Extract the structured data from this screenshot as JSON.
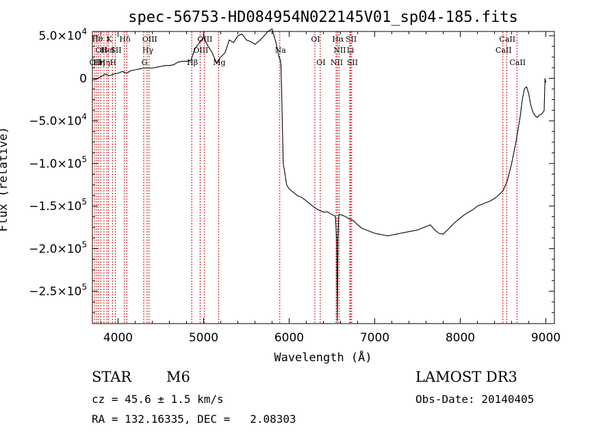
{
  "chart_data": {
    "type": "line",
    "title": "spec-56753-HD084954N022145V01_sp04-185.fits",
    "xlabel": "Wavelength (Å)",
    "ylabel": "Flux (relative)",
    "xlim": [
      3700,
      9100
    ],
    "ylim": [
      -288000,
      55000
    ],
    "x_ticks": [
      4000,
      5000,
      6000,
      7000,
      8000,
      9000
    ],
    "y_ticks": [
      {
        "value": 50000,
        "mant": "5.0",
        "exp": "4"
      },
      {
        "value": 0,
        "mant": "0",
        "exp": ""
      },
      {
        "value": -50000,
        "mant": "−5.0",
        "exp": "4"
      },
      {
        "value": -100000,
        "mant": "−1.0",
        "exp": "5"
      },
      {
        "value": -150000,
        "mant": "−1.5",
        "exp": "5"
      },
      {
        "value": -200000,
        "mant": "−2.0",
        "exp": "5"
      },
      {
        "value": -250000,
        "mant": "−2.5",
        "exp": "5"
      }
    ],
    "grid": false,
    "series": [
      {
        "color": "#000000",
        "x": [
          3700,
          3750,
          3800,
          3850,
          3900,
          3950,
          4000,
          4050,
          4100,
          4150,
          4200,
          4250,
          4300,
          4350,
          4400,
          4450,
          4500,
          4550,
          4600,
          4650,
          4700,
          4750,
          4800,
          4850,
          4900,
          4950,
          5000,
          5050,
          5100,
          5150,
          5200,
          5250,
          5300,
          5350,
          5400,
          5450,
          5500,
          5550,
          5600,
          5650,
          5700,
          5750,
          5800,
          5850,
          5880,
          5895,
          5905,
          5915,
          5930,
          5950,
          5970,
          6000,
          6050,
          6100,
          6150,
          6200,
          6250,
          6300,
          6350,
          6400,
          6450,
          6500,
          6540,
          6555,
          6562,
          6570,
          6580,
          6600,
          6650,
          6700,
          6750,
          6800,
          6850,
          6900,
          6950,
          7000,
          7050,
          7100,
          7150,
          7200,
          7250,
          7300,
          7350,
          7400,
          7450,
          7500,
          7550,
          7600,
          7650,
          7700,
          7750,
          7800,
          7850,
          7900,
          7950,
          8000,
          8050,
          8100,
          8150,
          8200,
          8250,
          8300,
          8350,
          8400,
          8450,
          8500,
          8550,
          8600,
          8650,
          8700,
          8725,
          8750,
          8775,
          8800,
          8825,
          8850,
          8875,
          8900,
          8925,
          8950,
          8980,
          8990,
          9000
        ],
        "y": [
          -2000,
          -1000,
          2000,
          5000,
          3000,
          5000,
          6000,
          8000,
          6000,
          9000,
          10000,
          11000,
          12000,
          12000,
          12000,
          13000,
          14000,
          15000,
          15000,
          16000,
          19000,
          20000,
          20000,
          21000,
          35000,
          42000,
          48000,
          38000,
          30000,
          18000,
          25000,
          30000,
          45000,
          42000,
          50000,
          52000,
          45000,
          43000,
          40000,
          44000,
          49000,
          55000,
          58000,
          40000,
          25000,
          22000,
          15000,
          -30000,
          -100000,
          -112000,
          -125000,
          -130000,
          -134000,
          -138000,
          -140000,
          -144000,
          -148000,
          -152000,
          -155000,
          -157000,
          -157000,
          -160000,
          -162000,
          -190000,
          -285000,
          -185000,
          -160000,
          -160000,
          -162000,
          -165000,
          -167000,
          -172000,
          -176000,
          -178000,
          -180000,
          -182000,
          -183000,
          -184000,
          -185000,
          -184000,
          -183000,
          -182000,
          -181000,
          -180000,
          -179000,
          -178000,
          -176000,
          -174000,
          -172000,
          -178000,
          -182000,
          -183000,
          -178000,
          -173000,
          -168000,
          -164000,
          -160000,
          -157000,
          -154000,
          -150000,
          -148000,
          -146000,
          -144000,
          -141000,
          -137000,
          -132000,
          -120000,
          -100000,
          -75000,
          -45000,
          -25000,
          -12000,
          -10000,
          -18000,
          -32000,
          -40000,
          -44000,
          -46000,
          -43000,
          -42000,
          -38000,
          0,
          -5000
        ]
      }
    ],
    "line_marks": [
      {
        "x": 3727,
        "label": "OII",
        "row": 2
      },
      {
        "x": 3750,
        "label": "Hθ",
        "row": 0
      },
      {
        "x": 3771,
        "label": "Hη",
        "row": 2
      },
      {
        "x": 3798,
        "label": "OII",
        "row": 1
      },
      {
        "x": 3835,
        "label": "Hη",
        "row": 2
      },
      {
        "x": 3869,
        "label": "HeI",
        "row": 1
      },
      {
        "x": 3889,
        "label": "K",
        "row": 0
      },
      {
        "x": 3934,
        "label": "H",
        "row": 2
      },
      {
        "x": 3968,
        "label": "SII",
        "row": 1
      },
      {
        "x": 4072,
        "label": "Hδ",
        "row": 0
      },
      {
        "x": 4102,
        "label": "",
        "row": 0
      },
      {
        "x": 4300,
        "label": "G",
        "row": 2
      },
      {
        "x": 4340,
        "label": "Hγ",
        "row": 1
      },
      {
        "x": 4363,
        "label": "OIII",
        "row": 0
      },
      {
        "x": 4861,
        "label": "Hβ",
        "row": 2
      },
      {
        "x": 4959,
        "label": "OIII",
        "row": 1
      },
      {
        "x": 5007,
        "label": "OIII",
        "row": 0
      },
      {
        "x": 5175,
        "label": "Mg",
        "row": 2
      },
      {
        "x": 5890,
        "label": "Na",
        "row": 1
      },
      {
        "x": 6300,
        "label": "OI",
        "row": 0
      },
      {
        "x": 6363,
        "label": "OI",
        "row": 2
      },
      {
        "x": 6548,
        "label": "NII",
        "row": 2
      },
      {
        "x": 6563,
        "label": "Hα",
        "row": 0
      },
      {
        "x": 6583,
        "label": "NII",
        "row": 1
      },
      {
        "x": 6717,
        "label": "SII",
        "row": 0
      },
      {
        "x": 6731,
        "label": "SII",
        "row": 2
      },
      {
        "x": 6708,
        "label": "Li",
        "row": 1
      },
      {
        "x": 8498,
        "label": "CaII",
        "row": 1
      },
      {
        "x": 8542,
        "label": "CaII",
        "row": 0
      },
      {
        "x": 8662,
        "label": "CaII",
        "row": 2
      }
    ]
  },
  "info": {
    "object_class": "STAR",
    "subclass": "M6",
    "redshift_text": "cz = 45.6 ± 1.5 km/s",
    "coords_text": "RA = 132.16335, DEC =   2.08303",
    "survey": "LAMOST DR3",
    "obs_date": "Obs-Date: 20140405"
  }
}
